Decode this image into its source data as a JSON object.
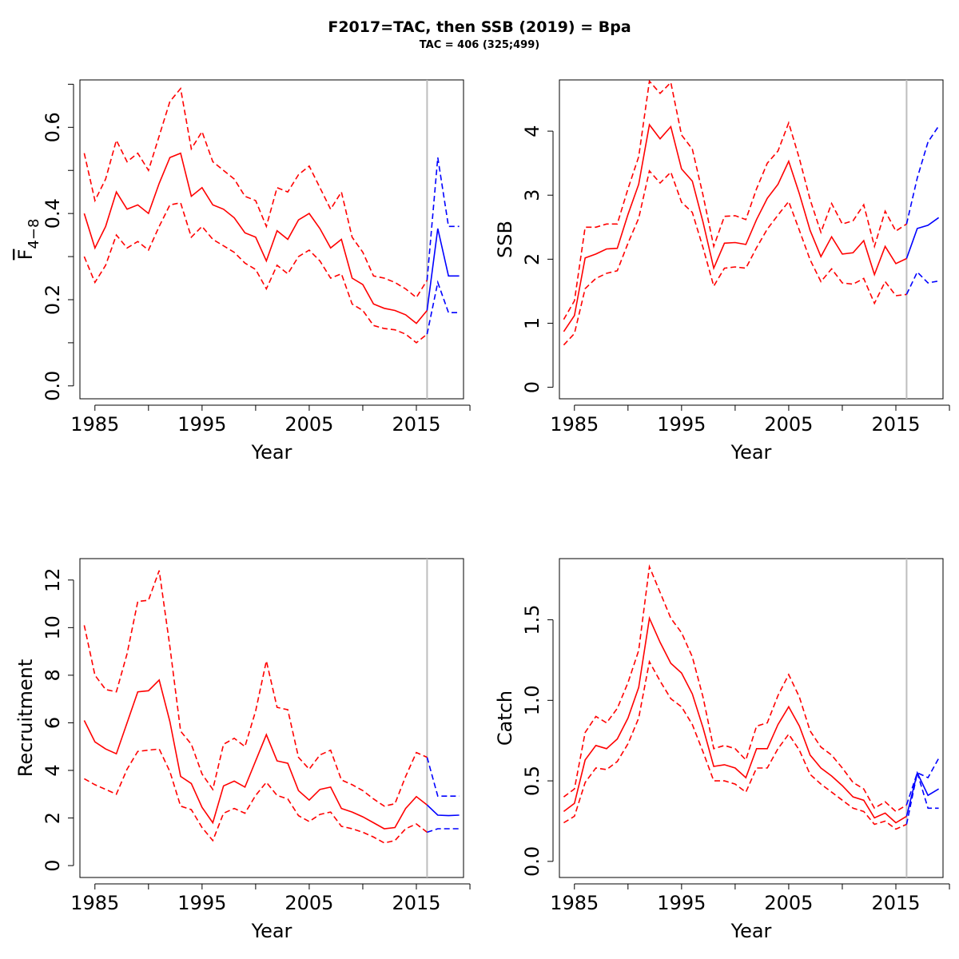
{
  "figure": {
    "title": "F2017=TAC, then SSB (2019) = Bpa",
    "subtitle": "TAC = 406 (325;499)"
  },
  "colors": {
    "historical": "#ff0000",
    "projection": "#0000ff",
    "divider": "#bebebe",
    "axis": "#000000"
  },
  "chart_data": [
    {
      "type": "line",
      "panel": "F",
      "xlabel": "Year",
      "ylabel_base": "F",
      "ylabel_sub": "4−8",
      "ylabel_overline": true,
      "xlim": [
        1983.6,
        2019.4
      ],
      "ylim": [
        -0.03,
        0.71
      ],
      "xticks": [
        1985,
        1990,
        1995,
        2000,
        2005,
        2010,
        2015,
        2020
      ],
      "xtick_labels": [
        "1985",
        "",
        "1995",
        "",
        "2005",
        "",
        "2015",
        ""
      ],
      "yticks": [
        0.0,
        0.1,
        0.2,
        0.3,
        0.4,
        0.5,
        0.6,
        0.7
      ],
      "ytick_labels": [
        "0.0",
        "",
        "0.2",
        "",
        "0.4",
        "",
        "0.6",
        ""
      ],
      "divider_year": 2016,
      "historical": {
        "years": [
          1984,
          1985,
          1986,
          1987,
          1988,
          1989,
          1990,
          1991,
          1992,
          1993,
          1994,
          1995,
          1996,
          1997,
          1998,
          1999,
          2000,
          2001,
          2002,
          2003,
          2004,
          2005,
          2006,
          2007,
          2008,
          2009,
          2010,
          2011,
          2012,
          2013,
          2014,
          2015,
          2016
        ],
        "estimate": [
          0.4,
          0.32,
          0.37,
          0.45,
          0.41,
          0.42,
          0.4,
          0.47,
          0.53,
          0.54,
          0.44,
          0.46,
          0.42,
          0.41,
          0.39,
          0.355,
          0.345,
          0.29,
          0.36,
          0.34,
          0.385,
          0.4,
          0.365,
          0.32,
          0.34,
          0.25,
          0.235,
          0.19,
          0.18,
          0.175,
          0.165,
          0.145,
          0.175
        ],
        "upper": [
          0.54,
          0.43,
          0.48,
          0.57,
          0.52,
          0.54,
          0.5,
          0.58,
          0.66,
          0.69,
          0.55,
          0.59,
          0.52,
          0.5,
          0.48,
          0.44,
          0.43,
          0.37,
          0.46,
          0.45,
          0.49,
          0.51,
          0.46,
          0.41,
          0.45,
          0.345,
          0.31,
          0.255,
          0.25,
          0.24,
          0.225,
          0.205,
          0.245
        ],
        "lower": [
          0.3,
          0.24,
          0.28,
          0.35,
          0.32,
          0.335,
          0.315,
          0.37,
          0.42,
          0.425,
          0.345,
          0.37,
          0.34,
          0.325,
          0.31,
          0.285,
          0.27,
          0.225,
          0.28,
          0.26,
          0.3,
          0.315,
          0.29,
          0.25,
          0.26,
          0.19,
          0.175,
          0.14,
          0.133,
          0.13,
          0.12,
          0.1,
          0.12
        ]
      },
      "projection": {
        "years": [
          2016,
          2017,
          2018,
          2019
        ],
        "estimate": [
          0.175,
          0.365,
          0.255,
          0.255
        ],
        "upper": [
          0.245,
          0.53,
          0.37,
          0.37
        ],
        "lower": [
          0.12,
          0.24,
          0.17,
          0.17
        ]
      }
    },
    {
      "type": "line",
      "panel": "SSB",
      "xlabel": "Year",
      "ylabel": "SSB",
      "xlim": [
        1983.6,
        2019.4
      ],
      "ylim": [
        -0.18,
        4.8
      ],
      "xticks": [
        1985,
        1990,
        1995,
        2000,
        2005,
        2010,
        2015,
        2020
      ],
      "xtick_labels": [
        "1985",
        "",
        "1995",
        "",
        "2005",
        "",
        "2015",
        ""
      ],
      "yticks": [
        0,
        1,
        2,
        3,
        4
      ],
      "ytick_labels": [
        "0",
        "1",
        "2",
        "3",
        "4"
      ],
      "divider_year": 2016,
      "historical": {
        "years": [
          1984,
          1985,
          1986,
          1987,
          1988,
          1989,
          1990,
          1991,
          1992,
          1993,
          1994,
          1995,
          1996,
          1997,
          1998,
          1999,
          2000,
          2001,
          2002,
          2003,
          2004,
          2005,
          2006,
          2007,
          2008,
          2009,
          2010,
          2011,
          2012,
          2013,
          2014,
          2015,
          2016
        ],
        "estimate": [
          0.87,
          1.12,
          2.02,
          2.08,
          2.16,
          2.17,
          2.7,
          3.17,
          4.1,
          3.88,
          4.07,
          3.41,
          3.22,
          2.58,
          1.86,
          2.25,
          2.26,
          2.23,
          2.62,
          2.95,
          3.17,
          3.53,
          3.02,
          2.45,
          2.04,
          2.35,
          2.08,
          2.1,
          2.29,
          1.76,
          2.2,
          1.93,
          2.01
        ],
        "upper": [
          1.06,
          1.35,
          2.5,
          2.5,
          2.55,
          2.55,
          3.1,
          3.6,
          4.78,
          4.59,
          4.76,
          3.94,
          3.72,
          3.0,
          2.2,
          2.67,
          2.68,
          2.62,
          3.1,
          3.5,
          3.69,
          4.13,
          3.57,
          2.93,
          2.42,
          2.87,
          2.55,
          2.6,
          2.85,
          2.2,
          2.75,
          2.44,
          2.55
        ],
        "lower": [
          0.66,
          0.84,
          1.54,
          1.7,
          1.78,
          1.82,
          2.25,
          2.64,
          3.38,
          3.19,
          3.36,
          2.89,
          2.73,
          2.18,
          1.58,
          1.86,
          1.88,
          1.86,
          2.18,
          2.47,
          2.69,
          2.9,
          2.45,
          1.99,
          1.65,
          1.85,
          1.63,
          1.61,
          1.7,
          1.31,
          1.65,
          1.43,
          1.45
        ]
      },
      "projection": {
        "years": [
          2016,
          2017,
          2018,
          2019
        ],
        "estimate": [
          2.01,
          2.48,
          2.53,
          2.65
        ],
        "upper": [
          2.55,
          3.27,
          3.83,
          4.08
        ],
        "lower": [
          1.45,
          1.8,
          1.63,
          1.66
        ]
      }
    },
    {
      "type": "line",
      "panel": "Recruitment",
      "xlabel": "Year",
      "ylabel": "Recruitment",
      "xlim": [
        1983.6,
        2019.4
      ],
      "ylim": [
        -0.5,
        12.9
      ],
      "xticks": [
        1985,
        1990,
        1995,
        2000,
        2005,
        2010,
        2015,
        2020
      ],
      "xtick_labels": [
        "1985",
        "",
        "1995",
        "",
        "2005",
        "",
        "2015",
        ""
      ],
      "yticks": [
        0,
        2,
        4,
        6,
        8,
        10,
        12
      ],
      "ytick_labels": [
        "0",
        "2",
        "4",
        "6",
        "8",
        "10",
        "12"
      ],
      "divider_year": 2016,
      "historical": {
        "years": [
          1984,
          1985,
          1986,
          1987,
          1988,
          1989,
          1990,
          1991,
          1992,
          1993,
          1994,
          1995,
          1996,
          1997,
          1998,
          1999,
          2000,
          2001,
          2002,
          2003,
          2004,
          2005,
          2006,
          2007,
          2008,
          2009,
          2010,
          2011,
          2012,
          2013,
          2014,
          2015,
          2016
        ],
        "estimate": [
          6.1,
          5.2,
          4.9,
          4.7,
          6.0,
          7.3,
          7.35,
          7.8,
          6.05,
          3.75,
          3.45,
          2.45,
          1.8,
          3.35,
          3.55,
          3.3,
          4.4,
          5.5,
          4.4,
          4.3,
          3.15,
          2.75,
          3.2,
          3.3,
          2.4,
          2.25,
          2.05,
          1.8,
          1.55,
          1.6,
          2.4,
          2.9,
          2.55
        ],
        "upper": [
          10.1,
          8.0,
          7.4,
          7.3,
          8.9,
          11.1,
          11.15,
          12.4,
          9.2,
          5.65,
          5.1,
          3.85,
          3.2,
          5.1,
          5.35,
          5.0,
          6.5,
          8.6,
          6.65,
          6.55,
          4.55,
          4.05,
          4.65,
          4.85,
          3.6,
          3.4,
          3.15,
          2.8,
          2.5,
          2.6,
          3.75,
          4.75,
          4.55
        ],
        "lower": [
          3.65,
          3.4,
          3.2,
          3.0,
          4.05,
          4.8,
          4.85,
          4.9,
          3.95,
          2.5,
          2.35,
          1.6,
          1.05,
          2.2,
          2.4,
          2.2,
          2.95,
          3.5,
          2.95,
          2.8,
          2.1,
          1.85,
          2.15,
          2.25,
          1.65,
          1.55,
          1.4,
          1.2,
          0.95,
          1.05,
          1.55,
          1.75,
          1.4
        ]
      },
      "projection": {
        "years": [
          2016,
          2017,
          2018,
          2019
        ],
        "estimate": [
          2.55,
          2.12,
          2.1,
          2.12
        ],
        "upper": [
          4.55,
          2.92,
          2.92,
          2.92
        ],
        "lower": [
          1.4,
          1.55,
          1.55,
          1.55
        ]
      }
    },
    {
      "type": "line",
      "panel": "Catch",
      "xlabel": "Year",
      "ylabel": "Catch",
      "xlim": [
        1983.6,
        2019.4
      ],
      "ylim": [
        -0.1,
        1.88
      ],
      "xticks": [
        1985,
        1990,
        1995,
        2000,
        2005,
        2010,
        2015,
        2020
      ],
      "xtick_labels": [
        "1985",
        "",
        "1995",
        "",
        "2005",
        "",
        "2015",
        ""
      ],
      "yticks": [
        0.0,
        0.5,
        1.0,
        1.5
      ],
      "ytick_labels": [
        "0.0",
        "0.5",
        "1.0",
        "1.5"
      ],
      "divider_year": 2016,
      "historical": {
        "years": [
          1984,
          1985,
          1986,
          1987,
          1988,
          1989,
          1990,
          1991,
          1992,
          1993,
          1994,
          1995,
          1996,
          1997,
          1998,
          1999,
          2000,
          2001,
          2002,
          2003,
          2004,
          2005,
          2006,
          2007,
          2008,
          2009,
          2010,
          2011,
          2012,
          2013,
          2014,
          2015,
          2016
        ],
        "estimate": [
          0.31,
          0.36,
          0.63,
          0.72,
          0.7,
          0.76,
          0.89,
          1.08,
          1.51,
          1.36,
          1.23,
          1.17,
          1.04,
          0.83,
          0.59,
          0.6,
          0.58,
          0.52,
          0.7,
          0.7,
          0.85,
          0.96,
          0.84,
          0.66,
          0.58,
          0.53,
          0.47,
          0.4,
          0.38,
          0.27,
          0.3,
          0.24,
          0.28
        ],
        "upper": [
          0.4,
          0.45,
          0.8,
          0.9,
          0.86,
          0.95,
          1.11,
          1.31,
          1.83,
          1.67,
          1.51,
          1.42,
          1.27,
          1.02,
          0.7,
          0.72,
          0.7,
          0.63,
          0.84,
          0.86,
          1.03,
          1.16,
          1.02,
          0.81,
          0.71,
          0.66,
          0.58,
          0.49,
          0.45,
          0.33,
          0.37,
          0.31,
          0.35
        ],
        "lower": [
          0.24,
          0.28,
          0.49,
          0.58,
          0.57,
          0.62,
          0.73,
          0.89,
          1.24,
          1.12,
          1.01,
          0.96,
          0.85,
          0.68,
          0.5,
          0.5,
          0.48,
          0.43,
          0.58,
          0.58,
          0.7,
          0.79,
          0.69,
          0.54,
          0.48,
          0.43,
          0.38,
          0.33,
          0.31,
          0.23,
          0.25,
          0.2,
          0.23
        ]
      },
      "projection": {
        "years": [
          2016,
          2017,
          2018,
          2019
        ],
        "estimate": [
          0.28,
          0.55,
          0.41,
          0.45
        ],
        "upper": [
          0.35,
          0.55,
          0.52,
          0.64
        ],
        "lower": [
          0.23,
          0.55,
          0.33,
          0.33
        ]
      }
    }
  ]
}
